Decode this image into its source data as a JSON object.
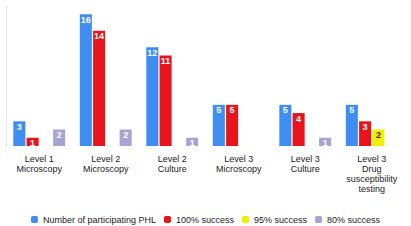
{
  "chart_data": {
    "type": "bar",
    "categories": [
      "Level 1 Microscopy",
      "Level 2 Microscopy",
      "Level 2 Culture",
      "Level 3 Microscopy",
      "Level 3 Culture",
      "Level 3 Drug susceptibility testing"
    ],
    "series": [
      {
        "name": "Number of participating PHL",
        "color": "#3d8ef0",
        "values": [
          3,
          16,
          12,
          5,
          5,
          5
        ]
      },
      {
        "name": "100% success",
        "color": "#e8141c",
        "values": [
          1,
          14,
          11,
          5,
          4,
          3
        ]
      },
      {
        "name": "95% success",
        "color": "#f2ee00",
        "values": [
          null,
          null,
          null,
          null,
          null,
          2
        ]
      },
      {
        "name": "80% success",
        "color": "#a6a4d2",
        "values": [
          2,
          2,
          1,
          null,
          1,
          null
        ]
      }
    ],
    "ylim": [
      0,
      17
    ],
    "data_labels": true,
    "tick_labels": "x",
    "grid": false,
    "legend": "bottom"
  }
}
